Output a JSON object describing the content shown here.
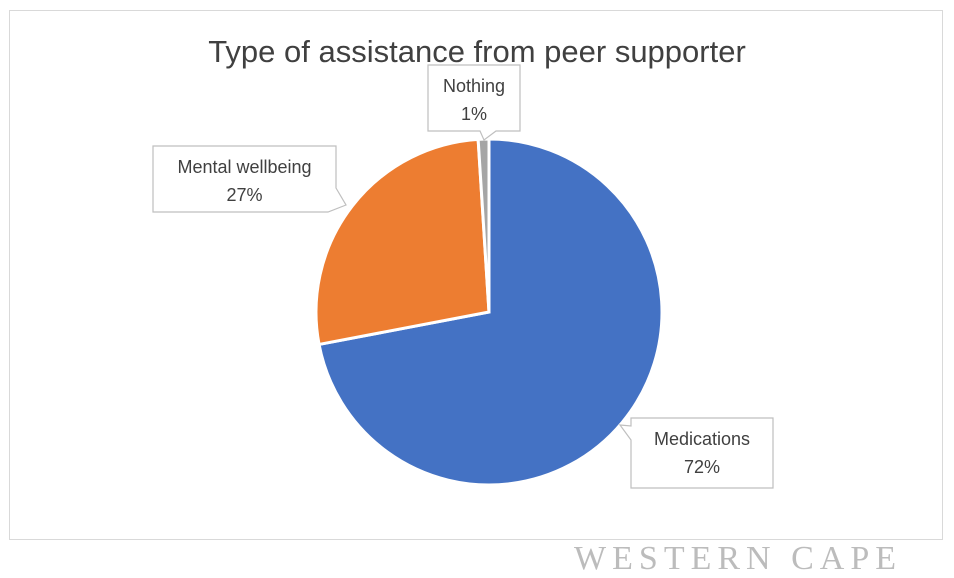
{
  "chart_data": {
    "type": "pie",
    "title": "Type of assistance from peer supporter",
    "categories": [
      "Medications",
      "Mental wellbeing",
      "Nothing"
    ],
    "values": [
      72,
      27,
      1
    ],
    "value_labels": [
      "72%",
      "27%",
      "1%"
    ],
    "colors": [
      "#4472c4",
      "#ed7d31",
      "#a5a5a5"
    ],
    "legend": "none",
    "data_labels": "callouts with category name and percentage"
  },
  "watermark": "WESTERN CAPE"
}
